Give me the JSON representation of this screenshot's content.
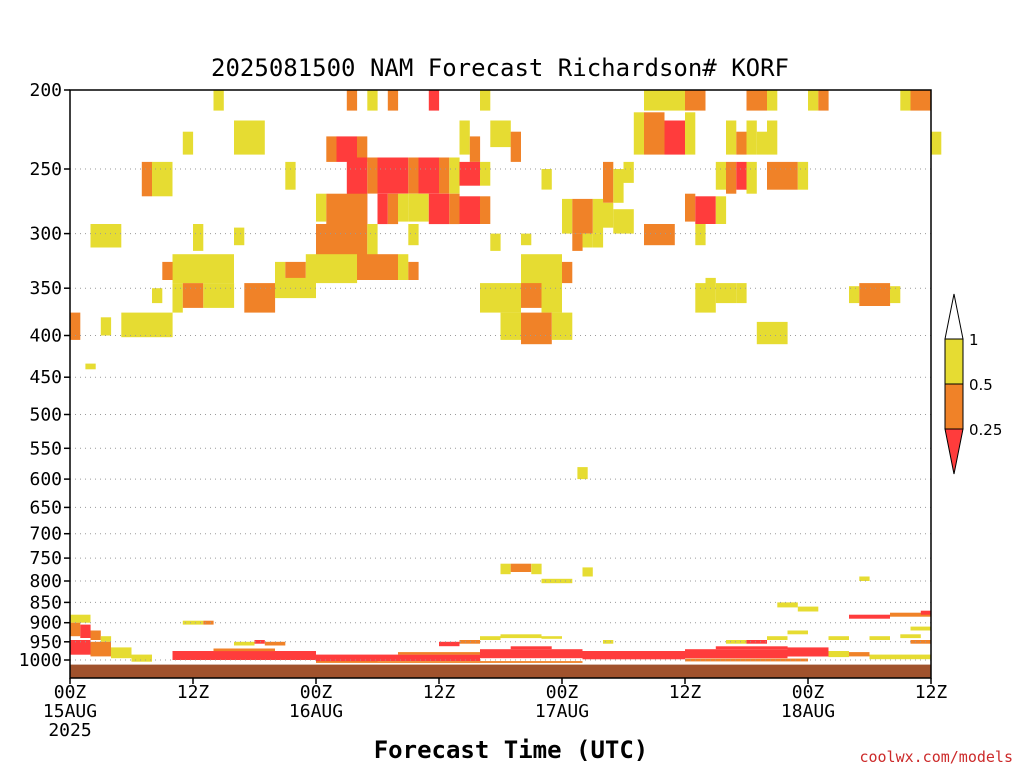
{
  "chart_data": {
    "type": "heatmap",
    "title": "2025081500 NAM Forecast Richardson# KORF",
    "xlabel": "Forecast Time (UTC)",
    "ylabel": "",
    "credit": "coolwx.com/models",
    "y_scale": "log-pressure",
    "ylim": [
      1030,
      200
    ],
    "xlim_hours": [
      0,
      84
    ],
    "grid": true,
    "y_ticks": [
      "200",
      "250",
      "300",
      "350",
      "400",
      "450",
      "500",
      "550",
      "600",
      "650",
      "700",
      "750",
      "800",
      "850",
      "900",
      "950",
      "1000"
    ],
    "x_ticks": [
      {
        "hour": 0,
        "lines": [
          "00Z",
          "15AUG",
          "2025"
        ]
      },
      {
        "hour": 12,
        "lines": [
          "12Z"
        ]
      },
      {
        "hour": 24,
        "lines": [
          "00Z",
          "16AUG"
        ]
      },
      {
        "hour": 36,
        "lines": [
          "12Z"
        ]
      },
      {
        "hour": 48,
        "lines": [
          "00Z",
          "17AUG"
        ]
      },
      {
        "hour": 60,
        "lines": [
          "12Z"
        ]
      },
      {
        "hour": 72,
        "lines": [
          "00Z",
          "18AUG"
        ]
      },
      {
        "hour": 84,
        "lines": [
          "12Z"
        ]
      }
    ],
    "legend": {
      "placement": "right",
      "levels": [
        {
          "label": "1",
          "value": 1
        },
        {
          "label": "0.5",
          "value": 0.5
        },
        {
          "label": "0.25",
          "value": 0.25
        }
      ],
      "bins": [
        {
          "range": "< 0.25",
          "color": "#ff3c3c"
        },
        {
          "range": "0.25-0.5",
          "color": "#f08228"
        },
        {
          "range": "0.5-1",
          "color": "#e6dc32"
        },
        {
          "range": "> 1",
          "color": "#ffffff"
        }
      ]
    },
    "ground_color": "#a0522d",
    "cells": [
      [
        14,
        15,
        200,
        212,
        "y"
      ],
      [
        27,
        28,
        200,
        212,
        "o"
      ],
      [
        29,
        30,
        200,
        212,
        "y"
      ],
      [
        31,
        32,
        200,
        212,
        "o"
      ],
      [
        35,
        36,
        200,
        212,
        "r"
      ],
      [
        40,
        41,
        200,
        212,
        "y"
      ],
      [
        56,
        60,
        200,
        212,
        "y"
      ],
      [
        60,
        62,
        200,
        212,
        "o"
      ],
      [
        66,
        68,
        200,
        212,
        "o"
      ],
      [
        68,
        69,
        200,
        212,
        "y"
      ],
      [
        72,
        73,
        200,
        212,
        "y"
      ],
      [
        73,
        74,
        200,
        212,
        "o"
      ],
      [
        81,
        82,
        200,
        212,
        "y"
      ],
      [
        82,
        84,
        200,
        212,
        "o"
      ],
      [
        16,
        19,
        218,
        240,
        "y"
      ],
      [
        11,
        12,
        225,
        240,
        "y"
      ],
      [
        55,
        56,
        213,
        240,
        "y"
      ],
      [
        56,
        58,
        213,
        240,
        "o"
      ],
      [
        58,
        60,
        218,
        240,
        "r"
      ],
      [
        60,
        61,
        213,
        240,
        "y"
      ],
      [
        64,
        65,
        218,
        240,
        "y"
      ],
      [
        65,
        66,
        225,
        240,
        "o"
      ],
      [
        66,
        67,
        218,
        240,
        "y"
      ],
      [
        67,
        68,
        225,
        240,
        "y"
      ],
      [
        68,
        69,
        218,
        240,
        "y"
      ],
      [
        25,
        26,
        228,
        245,
        "o"
      ],
      [
        26,
        28,
        228,
        245,
        "r"
      ],
      [
        28,
        29,
        228,
        245,
        "o"
      ],
      [
        38,
        39,
        218,
        240,
        "y"
      ],
      [
        41,
        43,
        218,
        235,
        "y"
      ],
      [
        43,
        44,
        225,
        245,
        "o"
      ],
      [
        39,
        40,
        228,
        245,
        "o"
      ],
      [
        84,
        85,
        225,
        240,
        "y"
      ],
      [
        7,
        8,
        245,
        270,
        "o"
      ],
      [
        8,
        10,
        245,
        270,
        "y"
      ],
      [
        21,
        22,
        245,
        265,
        "y"
      ],
      [
        27,
        29,
        242,
        292,
        "r"
      ],
      [
        29,
        30,
        242,
        268,
        "o"
      ],
      [
        30,
        33,
        242,
        268,
        "r"
      ],
      [
        33,
        34,
        242,
        268,
        "o"
      ],
      [
        34,
        36,
        242,
        268,
        "r"
      ],
      [
        36,
        37,
        242,
        268,
        "o"
      ],
      [
        37,
        38,
        242,
        268,
        "y"
      ],
      [
        38,
        40,
        245,
        262,
        "r"
      ],
      [
        40,
        41,
        245,
        262,
        "y"
      ],
      [
        46,
        47,
        250,
        265,
        "y"
      ],
      [
        52,
        53,
        245,
        275,
        "o"
      ],
      [
        53,
        54,
        250,
        275,
        "y"
      ],
      [
        54,
        55,
        245,
        260,
        "y"
      ],
      [
        63,
        64,
        245,
        265,
        "y"
      ],
      [
        64,
        65,
        245,
        268,
        "o"
      ],
      [
        65,
        66,
        245,
        265,
        "r"
      ],
      [
        66,
        67,
        245,
        268,
        "y"
      ],
      [
        68,
        71,
        245,
        265,
        "o"
      ],
      [
        71,
        72,
        245,
        265,
        "y"
      ],
      [
        24,
        25,
        268,
        290,
        "y"
      ],
      [
        25,
        29,
        268,
        292,
        "o"
      ],
      [
        30,
        31,
        268,
        292,
        "r"
      ],
      [
        31,
        32,
        268,
        292,
        "o"
      ],
      [
        32,
        33,
        268,
        290,
        "y"
      ],
      [
        33,
        35,
        268,
        290,
        "y"
      ],
      [
        35,
        37,
        268,
        292,
        "r"
      ],
      [
        37,
        38,
        268,
        292,
        "o"
      ],
      [
        38,
        40,
        270,
        292,
        "r"
      ],
      [
        40,
        41,
        270,
        292,
        "o"
      ],
      [
        48,
        49,
        272,
        300,
        "y"
      ],
      [
        49,
        51,
        272,
        300,
        "o"
      ],
      [
        51,
        52,
        272,
        300,
        "y"
      ],
      [
        52,
        53,
        275,
        295,
        "y"
      ],
      [
        53,
        55,
        280,
        300,
        "y"
      ],
      [
        60,
        61,
        268,
        290,
        "o"
      ],
      [
        61,
        63,
        270,
        292,
        "r"
      ],
      [
        63,
        64,
        270,
        292,
        "y"
      ],
      [
        2,
        5,
        292,
        312,
        "y"
      ],
      [
        24,
        29,
        292,
        320,
        "o"
      ],
      [
        29,
        30,
        292,
        320,
        "y"
      ],
      [
        33,
        34,
        292,
        310,
        "y"
      ],
      [
        41,
        42,
        300,
        315,
        "y"
      ],
      [
        44,
        45,
        300,
        310,
        "y"
      ],
      [
        49,
        50,
        300,
        315,
        "o"
      ],
      [
        50,
        51,
        300,
        312,
        "y"
      ],
      [
        51,
        52,
        300,
        312,
        "y"
      ],
      [
        56,
        59,
        292,
        310,
        "o"
      ],
      [
        61,
        62,
        292,
        310,
        "y"
      ],
      [
        12,
        13,
        292,
        315,
        "y"
      ],
      [
        16,
        17,
        295,
        310,
        "y"
      ],
      [
        10,
        16,
        318,
        345,
        "y"
      ],
      [
        20,
        21,
        325,
        345,
        "y"
      ],
      [
        21,
        23,
        325,
        345,
        "o"
      ],
      [
        23,
        28,
        318,
        345,
        "y"
      ],
      [
        28,
        32,
        318,
        342,
        "o"
      ],
      [
        32,
        33,
        318,
        342,
        "y"
      ],
      [
        33,
        34,
        325,
        342,
        "o"
      ],
      [
        44,
        48,
        318,
        360,
        "y"
      ],
      [
        48,
        49,
        325,
        345,
        "o"
      ],
      [
        9,
        10,
        325,
        342,
        "o"
      ],
      [
        10,
        11,
        345,
        375,
        "y"
      ],
      [
        11,
        13,
        345,
        370,
        "o"
      ],
      [
        13,
        16,
        345,
        370,
        "y"
      ],
      [
        17,
        20,
        345,
        375,
        "o"
      ],
      [
        20,
        24,
        340,
        360,
        "y"
      ],
      [
        40,
        44,
        345,
        375,
        "y"
      ],
      [
        44,
        46,
        345,
        370,
        "o"
      ],
      [
        46,
        48,
        350,
        375,
        "y"
      ],
      [
        8,
        9,
        350,
        365,
        "y"
      ],
      [
        61,
        62,
        345,
        375,
        "y"
      ],
      [
        62,
        63,
        340,
        375,
        "y"
      ],
      [
        63,
        65,
        345,
        365,
        "y"
      ],
      [
        65,
        66,
        345,
        365,
        "y"
      ],
      [
        76,
        77,
        348,
        365,
        "y"
      ],
      [
        77,
        80,
        345,
        368,
        "o"
      ],
      [
        80,
        81,
        348,
        365,
        "y"
      ],
      [
        0,
        1,
        375,
        405,
        "o"
      ],
      [
        3,
        4,
        380,
        400,
        "y"
      ],
      [
        5,
        10,
        375,
        402,
        "y"
      ],
      [
        42,
        44,
        375,
        405,
        "y"
      ],
      [
        44,
        47,
        375,
        410,
        "o"
      ],
      [
        47,
        49,
        375,
        405,
        "y"
      ],
      [
        67,
        70,
        385,
        410,
        "y"
      ],
      [
        1.5,
        2.5,
        433,
        440,
        "y"
      ],
      [
        49.5,
        50.5,
        580,
        600,
        "y"
      ],
      [
        42,
        43,
        762,
        785,
        "y"
      ],
      [
        43,
        45,
        762,
        780,
        "o"
      ],
      [
        45,
        46,
        762,
        785,
        "y"
      ],
      [
        46,
        49,
        795,
        805,
        "y"
      ],
      [
        50,
        51,
        770,
        790,
        "y"
      ],
      [
        77,
        78,
        790,
        800,
        "y"
      ],
      [
        69,
        71,
        850,
        862,
        "y"
      ],
      [
        71,
        73,
        860,
        872,
        "y"
      ],
      [
        76,
        80,
        880,
        890,
        "r"
      ],
      [
        80,
        84,
        875,
        885,
        "o"
      ],
      [
        83,
        84,
        870,
        880,
        "r"
      ],
      [
        0,
        2,
        880,
        900,
        "y"
      ],
      [
        11,
        13,
        895,
        905,
        "y"
      ],
      [
        13,
        14,
        895,
        905,
        "o"
      ],
      [
        0,
        1,
        900,
        935,
        "o"
      ],
      [
        1,
        2,
        905,
        940,
        "r"
      ],
      [
        2,
        3,
        920,
        945,
        "o"
      ],
      [
        3,
        4,
        935,
        950,
        "y"
      ],
      [
        0,
        2,
        945,
        985,
        "r"
      ],
      [
        2,
        4,
        950,
        990,
        "o"
      ],
      [
        4,
        6,
        965,
        995,
        "y"
      ],
      [
        6,
        8,
        985,
        1005,
        "y"
      ],
      [
        16,
        18,
        950,
        960,
        "y"
      ],
      [
        18,
        19,
        945,
        955,
        "r"
      ],
      [
        19,
        21,
        950,
        960,
        "o"
      ],
      [
        36,
        38,
        950,
        962,
        "r"
      ],
      [
        38,
        40,
        945,
        955,
        "o"
      ],
      [
        40,
        42,
        935,
        945,
        "y"
      ],
      [
        42,
        46,
        930,
        940,
        "y"
      ],
      [
        46,
        48,
        935,
        942,
        "y"
      ],
      [
        52,
        53,
        945,
        955,
        "y"
      ],
      [
        64,
        66,
        945,
        955,
        "y"
      ],
      [
        66,
        68,
        945,
        955,
        "r"
      ],
      [
        68,
        70,
        935,
        945,
        "y"
      ],
      [
        70,
        72,
        920,
        930,
        "y"
      ],
      [
        74,
        76,
        935,
        945,
        "y"
      ],
      [
        78,
        80,
        935,
        945,
        "y"
      ],
      [
        81,
        83,
        930,
        940,
        "y"
      ],
      [
        82,
        84,
        945,
        955,
        "o"
      ],
      [
        82,
        84,
        910,
        920,
        "y"
      ],
      [
        10,
        24,
        975,
        1000,
        "r"
      ],
      [
        14,
        20,
        968,
        975,
        "o"
      ],
      [
        24,
        30,
        985,
        1005,
        "r"
      ],
      [
        30,
        40,
        985,
        1003,
        "r"
      ],
      [
        32,
        40,
        978,
        985,
        "o"
      ],
      [
        40,
        50,
        970,
        995,
        "r"
      ],
      [
        43,
        47,
        962,
        970,
        "r"
      ],
      [
        50,
        60,
        975,
        998,
        "r"
      ],
      [
        60,
        70,
        970,
        995,
        "r"
      ],
      [
        63,
        70,
        962,
        970,
        "r"
      ],
      [
        70,
        74,
        965,
        990,
        "r"
      ],
      [
        74,
        76,
        975,
        992,
        "y"
      ],
      [
        76,
        78,
        978,
        990,
        "o"
      ],
      [
        78,
        84,
        985,
        998,
        "y"
      ],
      [
        24,
        50,
        1003,
        1008,
        "o"
      ],
      [
        60,
        72,
        996,
        1004,
        "o"
      ]
    ]
  }
}
